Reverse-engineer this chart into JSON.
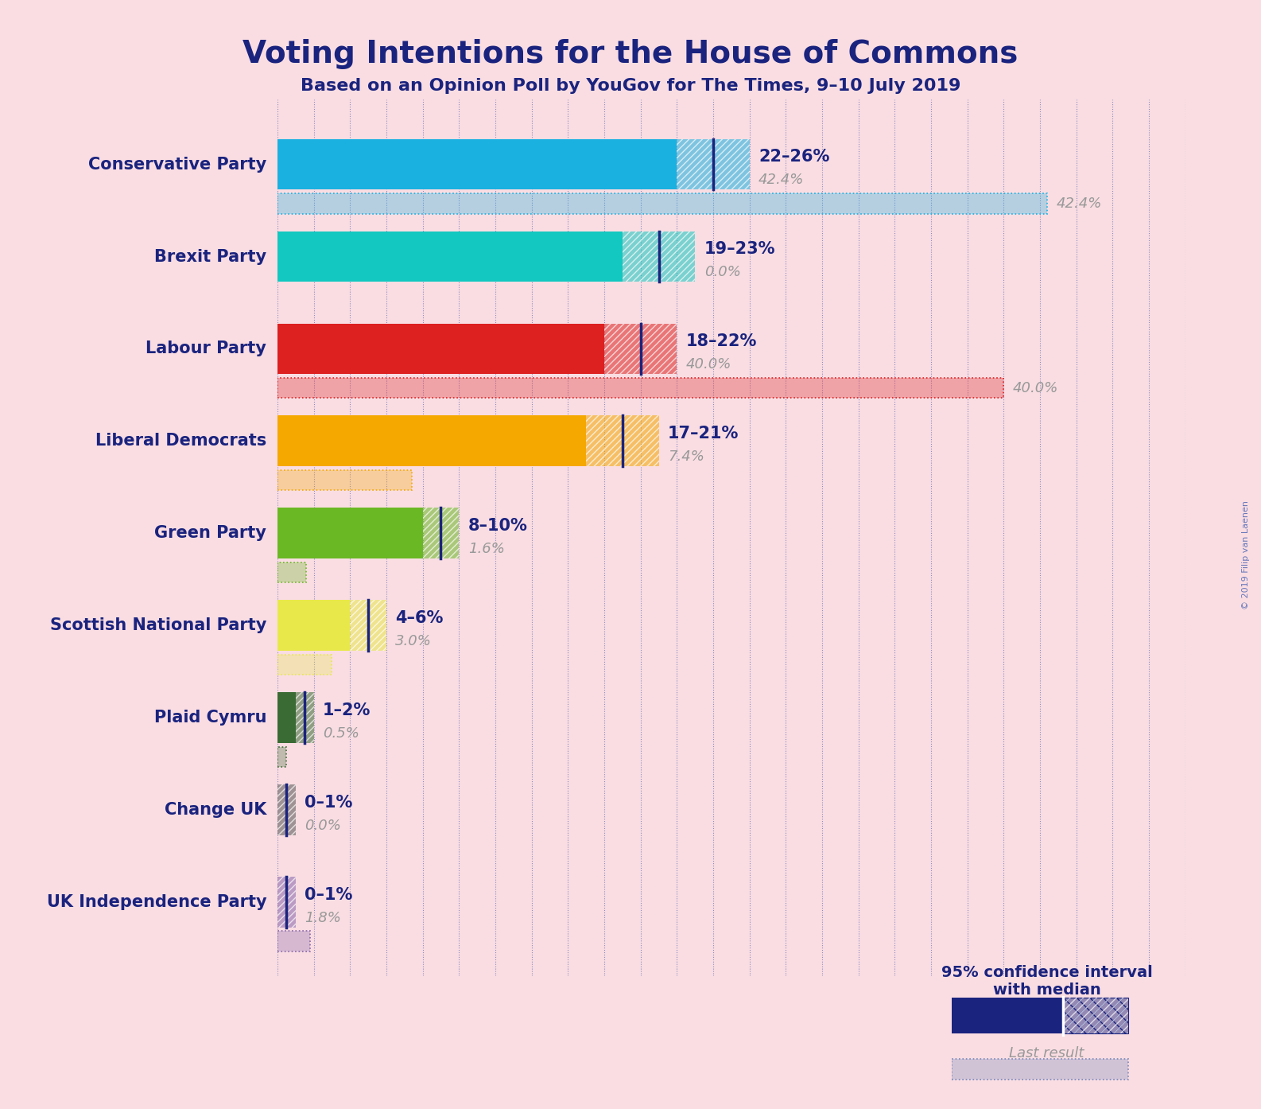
{
  "title": "Voting Intentions for the House of Commons",
  "subtitle": "Based on an Opinion Poll by YouGov for The Times, 9–10 July 2019",
  "copyright": "© 2019 Filip van Laenen",
  "background_color": "#f9dde2",
  "parties": [
    "Conservative Party",
    "Brexit Party",
    "Labour Party",
    "Liberal Democrats",
    "Green Party",
    "Scottish National Party",
    "Plaid Cymru",
    "Change UK",
    "UK Independence Party"
  ],
  "colors": [
    "#1ab0e0",
    "#12c8c0",
    "#dd2020",
    "#f5a800",
    "#6ab823",
    "#e8e84a",
    "#3a6b35",
    "#555555",
    "#8866aa"
  ],
  "median_values": [
    24,
    21,
    20,
    19,
    9,
    5,
    1.5,
    0.5,
    0.5
  ],
  "low_values": [
    22,
    19,
    18,
    17,
    8,
    4,
    1,
    0,
    0
  ],
  "high_values": [
    26,
    23,
    22,
    21,
    10,
    6,
    2,
    1,
    1
  ],
  "last_results": [
    42.4,
    0.0,
    40.0,
    7.4,
    1.6,
    3.0,
    0.5,
    0.0,
    1.8
  ],
  "range_labels": [
    "22–26%",
    "19–23%",
    "18–22%",
    "17–21%",
    "8–10%",
    "4–6%",
    "1–2%",
    "0–1%",
    "0–1%"
  ],
  "last_result_labels": [
    "42.4%",
    "0.0%",
    "40.0%",
    "7.4%",
    "1.6%",
    "3.0%",
    "0.5%",
    "0.0%",
    "1.8%"
  ],
  "show_last_result_at_end": [
    true,
    false,
    true,
    false,
    false,
    false,
    false,
    false,
    false
  ],
  "xlim": [
    0,
    50
  ],
  "title_color": "#1a237e",
  "label_color": "#1a237e",
  "last_result_text_color": "#999999",
  "legend_text_color": "#1a237e"
}
